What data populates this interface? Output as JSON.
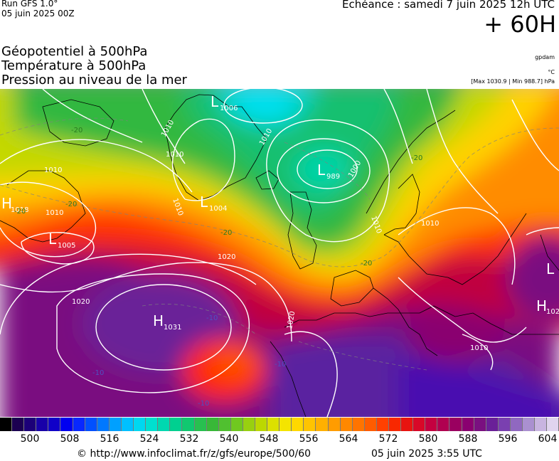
{
  "header": {
    "run": "Run GFS 1.0°",
    "run_date": "05 juin 2025 00Z",
    "echeance": "Echéance : samedi 7 juin 2025 12h UTC",
    "lead": "+ 60H"
  },
  "titles": {
    "line1": "Géopotentiel à 500hPa",
    "line2": "Température à 500hPa",
    "line3": "Pression au niveau de la mer"
  },
  "units": {
    "geopotential": "gpdam",
    "temperature": "°C",
    "pressure_range": "[Max 1030.9 | Min 988.7] hPa"
  },
  "legend": {
    "labels": [
      "500",
      "508",
      "516",
      "524",
      "532",
      "540",
      "548",
      "556",
      "564",
      "572",
      "580",
      "588",
      "596",
      "604"
    ],
    "colors": [
      "#000000",
      "#1b0050",
      "#1c0078",
      "#1800a8",
      "#1000c8",
      "#0000f0",
      "#0828ff",
      "#0050ff",
      "#0078ff",
      "#00a0ff",
      "#00c0ff",
      "#00d8f0",
      "#00e0d0",
      "#00d8b0",
      "#00d090",
      "#10c870",
      "#28c050",
      "#38b838",
      "#50c030",
      "#70c820",
      "#98d010",
      "#bcd800",
      "#dce000",
      "#f4e400",
      "#ffd800",
      "#ffc400",
      "#ffb000",
      "#ff9c00",
      "#ff8800",
      "#ff7400",
      "#ff5c00",
      "#ff4000",
      "#f82800",
      "#e81410",
      "#d80828",
      "#c40040",
      "#b00050",
      "#9a0060",
      "#8a0070",
      "#7a1080",
      "#6a2098",
      "#7a40b0",
      "#9068c0",
      "#aa90d0",
      "#c8b4e0",
      "#e0d4ee"
    ]
  },
  "map": {
    "pressure_labels": {
      "iceland_low": "L",
      "iceland_low_value": "1006",
      "norway_low": "L",
      "norway_low_value": "989",
      "greenland_low": "L",
      "greenland_low_value": "1004",
      "canada_high": "H",
      "canada_high_value": "1018",
      "atlantic_low": "L",
      "atlantic_low_value": "1005",
      "azores_high": "H",
      "azores_high_value": "1031",
      "east_high": "H",
      "east_high_value": "102",
      "east_low": "L"
    },
    "isobar_labels": [
      "1010",
      "1010",
      "1010",
      "1010",
      "1010",
      "1000",
      "1010",
      "1010",
      "1010",
      "1020",
      "1020",
      "1020",
      "1010"
    ],
    "temperature_labels": [
      "-20",
      "-20",
      "-20",
      "-20",
      "-20",
      "-20",
      "-10",
      "-10",
      "-10",
      "-10"
    ],
    "colors": {
      "isobar": "#ffffff",
      "coast": "#000000"
    }
  },
  "footer": {
    "credit": "© http://www.infoclimat.fr/z/gfs/europe/500/60",
    "generated": "05 juin 2025  3:55 UTC"
  }
}
